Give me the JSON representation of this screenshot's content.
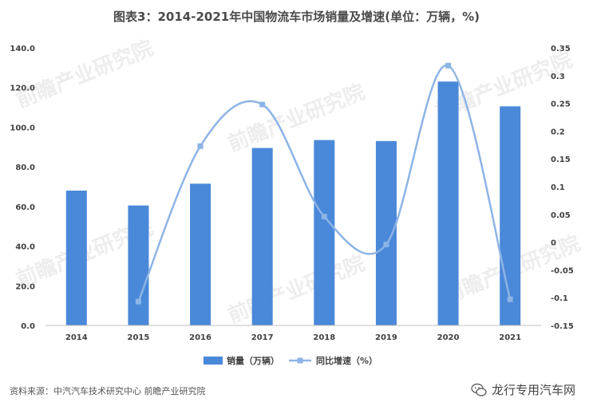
{
  "title": "图表3：2014-2021年中国物流车市场销量及增速(单位：万辆，%)",
  "source": "资料来源：中汽汽车技术研究中心 前瞻产业研究院",
  "brand": "龙行专用汽车网",
  "watermark": "前瞻产业研究院",
  "colors": {
    "bar": "#4a88d9",
    "line": "#8db4e6",
    "marker": "#8db4e6"
  },
  "chart_data": {
    "type": "bar",
    "title": "图表3：2014-2021年中国物流车市场销量及增速(单位：万辆，%)",
    "categories": [
      "2014",
      "2015",
      "2016",
      "2017",
      "2018",
      "2019",
      "2020",
      "2021"
    ],
    "series": [
      {
        "name": "销量（万辆）",
        "type": "bar",
        "axis": "left",
        "values": [
          68.0,
          60.5,
          71.5,
          89.5,
          93.5,
          93.0,
          123.0,
          110.5
        ]
      },
      {
        "name": "同比增速（%）",
        "type": "line",
        "smooth": true,
        "axis": "right",
        "values": [
          null,
          -0.107,
          0.173,
          0.248,
          0.046,
          -0.004,
          0.318,
          -0.103
        ]
      }
    ],
    "y_left": {
      "min": 0,
      "max": 140,
      "step": 20,
      "ticks": [
        "0.0",
        "20.0",
        "40.0",
        "60.0",
        "80.0",
        "100.0",
        "120.0",
        "140.0"
      ]
    },
    "y_right": {
      "min": -0.15,
      "max": 0.35,
      "step": 0.05,
      "ticks": [
        "-0.15",
        "-0.1",
        "-0.05",
        "0",
        "0.05",
        "0.1",
        "0.15",
        "0.2",
        "0.25",
        "0.3",
        "0.35"
      ]
    },
    "grid": false,
    "legend": "bottom-center"
  }
}
